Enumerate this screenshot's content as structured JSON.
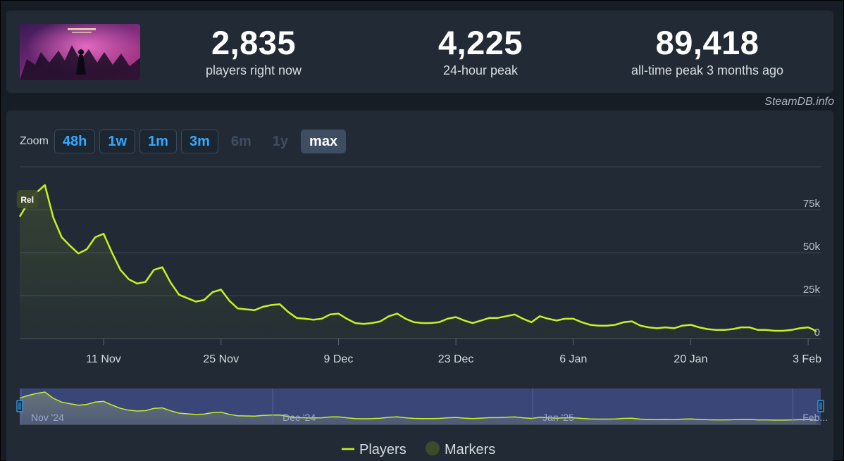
{
  "stats": {
    "now_value": "2,835",
    "now_label": "players right now",
    "peak24_value": "4,225",
    "peak24_label": "24-hour peak",
    "alltime_value": "89,418",
    "alltime_label": "all-time peak 3 months ago"
  },
  "credit": "SteamDB.info",
  "zoom": {
    "label": "Zoom",
    "buttons": [
      {
        "label": "48h",
        "state": "enabled"
      },
      {
        "label": "1w",
        "state": "enabled"
      },
      {
        "label": "1m",
        "state": "enabled"
      },
      {
        "label": "3m",
        "state": "enabled"
      },
      {
        "label": "6m",
        "state": "disabled"
      },
      {
        "label": "1y",
        "state": "disabled"
      },
      {
        "label": "max",
        "state": "active"
      }
    ]
  },
  "colors": {
    "line": "#c6f123",
    "navigator_bg": "#3b4678",
    "marker": "#3d4b2a",
    "card": "#222b35"
  },
  "chart_data": {
    "type": "line",
    "ylim": [
      0,
      100000
    ],
    "yticks": [
      {
        "value": 0,
        "label": "0"
      },
      {
        "value": 25000,
        "label": "25k"
      },
      {
        "value": 50000,
        "label": "50k"
      },
      {
        "value": 75000,
        "label": "75k"
      }
    ],
    "xticks": [
      {
        "day": 10,
        "label": "11 Nov"
      },
      {
        "day": 24,
        "label": "25 Nov"
      },
      {
        "day": 38,
        "label": "9 Dec"
      },
      {
        "day": 52,
        "label": "23 Dec"
      },
      {
        "day": 66,
        "label": "6 Jan"
      },
      {
        "day": 80,
        "label": "20 Jan"
      },
      {
        "day": 94,
        "label": "3 Feb"
      }
    ],
    "navigator_labels": [
      {
        "day": 1,
        "label": "Nov '24"
      },
      {
        "day": 31,
        "label": "Dec '24"
      },
      {
        "day": 62,
        "label": "Jan '25"
      },
      {
        "day": 93,
        "label": "Feb..."
      }
    ],
    "markers": [
      {
        "day": 0.9,
        "label": "Rel"
      }
    ],
    "series": [
      {
        "name": "Players",
        "x": [
          0,
          1,
          2,
          3,
          4,
          5,
          6,
          7,
          8,
          9,
          10,
          11,
          12,
          13,
          14,
          15,
          16,
          17,
          18,
          19,
          20,
          21,
          22,
          23,
          24,
          25,
          26,
          27,
          28,
          29,
          30,
          31,
          32,
          33,
          34,
          35,
          36,
          37,
          38,
          39,
          40,
          41,
          42,
          43,
          44,
          45,
          46,
          47,
          48,
          49,
          50,
          51,
          52,
          53,
          54,
          55,
          56,
          57,
          58,
          59,
          60,
          61,
          62,
          63,
          64,
          65,
          66,
          67,
          68,
          69,
          70,
          71,
          72,
          73,
          74,
          75,
          76,
          77,
          78,
          79,
          80,
          81,
          82,
          83,
          84,
          85,
          86,
          87,
          88,
          89,
          90,
          91,
          92,
          93,
          94,
          94.5,
          95
        ],
        "y": [
          71000,
          79000,
          85000,
          89400,
          70500,
          59000,
          54000,
          49500,
          52000,
          59000,
          61000,
          50000,
          40000,
          34500,
          32000,
          33000,
          40000,
          41500,
          32500,
          25500,
          23500,
          21500,
          22500,
          27000,
          28500,
          22000,
          17500,
          17000,
          16500,
          18500,
          19500,
          20000,
          15500,
          12000,
          11500,
          11000,
          11500,
          14000,
          14500,
          11500,
          9000,
          8500,
          9000,
          10000,
          13000,
          14500,
          11500,
          9500,
          9000,
          9000,
          9500,
          11500,
          12500,
          10500,
          9000,
          10500,
          12000,
          12000,
          13000,
          14000,
          11500,
          9500,
          13000,
          11500,
          10500,
          11500,
          11500,
          9500,
          8000,
          7500,
          7500,
          8000,
          9500,
          10000,
          7500,
          6500,
          6000,
          6500,
          6000,
          7500,
          8000,
          6500,
          5500,
          5000,
          5000,
          5500,
          6500,
          6500,
          5000,
          5000,
          4500,
          4500,
          5000,
          6000,
          6500,
          5500,
          4000
        ]
      }
    ],
    "legend": {
      "players": "Players",
      "markers": "Markers"
    }
  }
}
